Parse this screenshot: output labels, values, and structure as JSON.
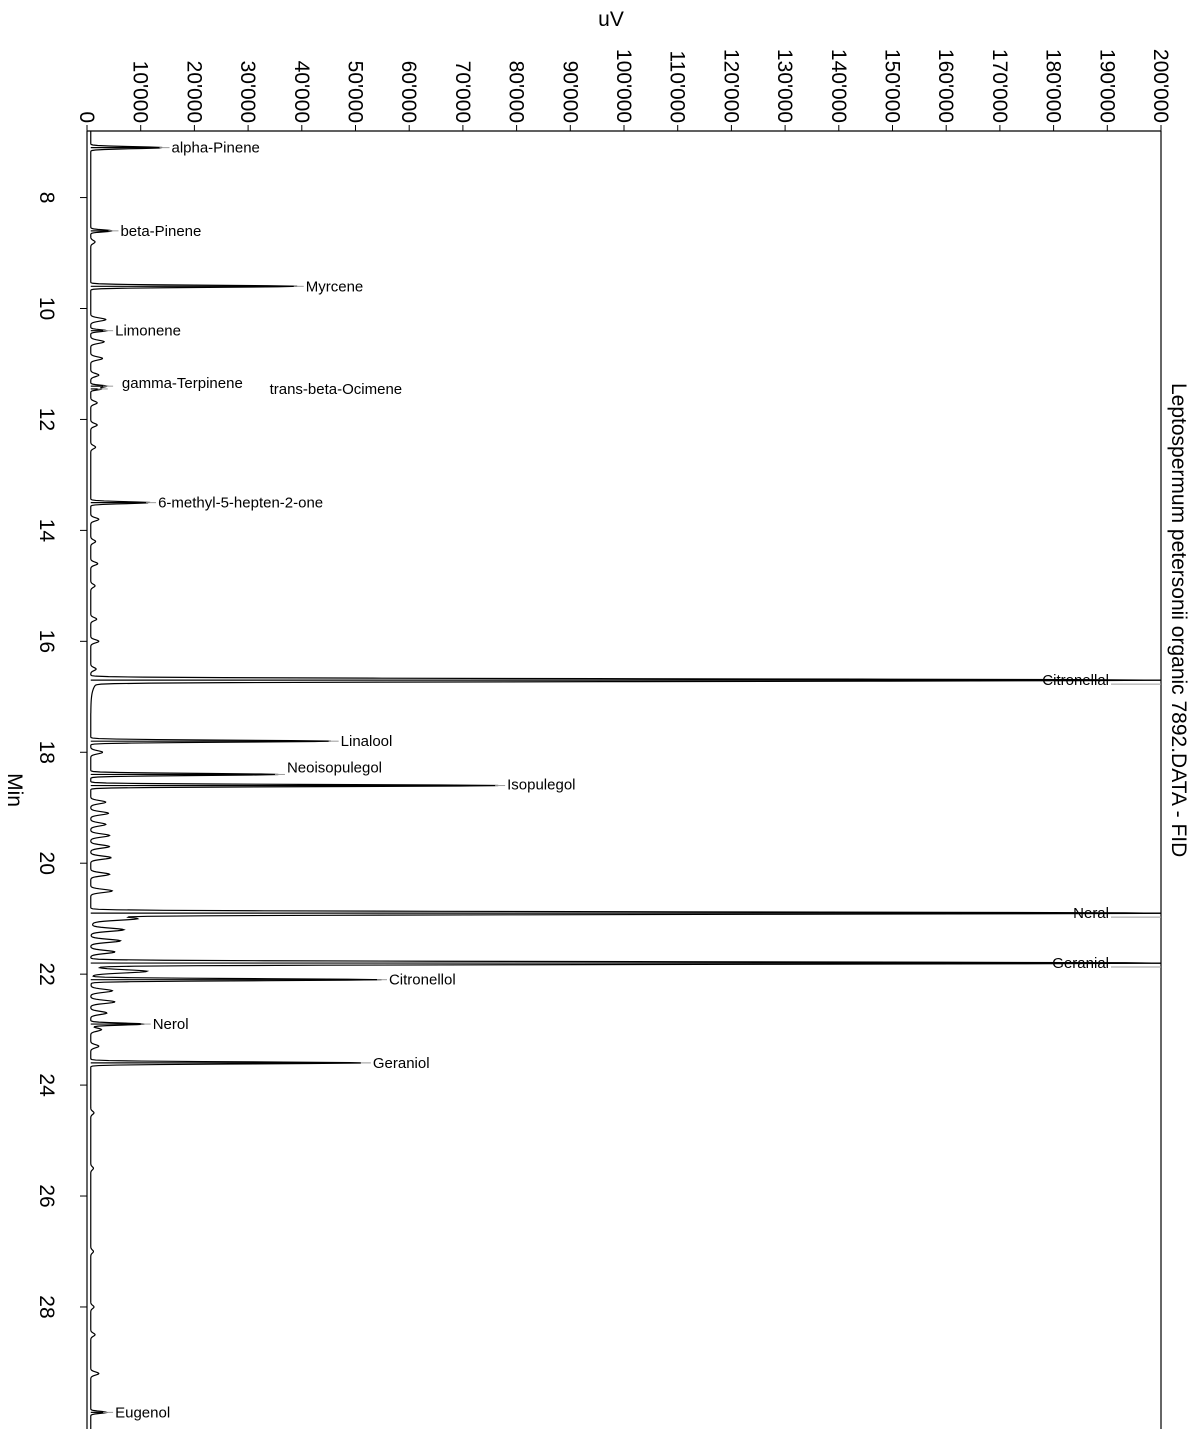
{
  "chart_data": {
    "type": "line",
    "title": "Leptospermum petersonii organic 7892.DATA - FID",
    "xlabel": "Min",
    "ylabel": "uV",
    "xlim": [
      6.8,
      30.2
    ],
    "ylim": [
      0,
      200000
    ],
    "x_ticks": [
      8,
      10,
      12,
      14,
      16,
      18,
      20,
      22,
      24,
      26,
      28
    ],
    "y_ticks": [
      "0",
      "10'000",
      "20'000",
      "30'000",
      "40'000",
      "50'000",
      "60'000",
      "70'000",
      "80'000",
      "90'000",
      "100'000",
      "110'000",
      "120'000",
      "130'000",
      "140'000",
      "150'000",
      "160'000",
      "170'000",
      "180'000",
      "190'000",
      "200'000"
    ],
    "baseline": 700,
    "orientation": "rotated-90",
    "grid": false,
    "peaks": [
      {
        "label": "alpha-Pinene",
        "x": 7.1,
        "y": 13500
      },
      {
        "label": "beta-Pinene",
        "x": 8.6,
        "y": 4000
      },
      {
        "label": "Myrcene",
        "x": 9.6,
        "y": 38500
      },
      {
        "label": "Limonene",
        "x": 10.4,
        "y": 3000
      },
      {
        "label": "gamma-Terpinene",
        "x": 11.4,
        "y": 3000
      },
      {
        "label": "trans-beta-Ocimene",
        "x": 11.45,
        "y": 2000
      },
      {
        "label": "6-methyl-5-hepten-2-one",
        "x": 13.5,
        "y": 11000
      },
      {
        "label": "Citronellal",
        "x": 16.7,
        "y": 200000
      },
      {
        "label": "Linalool",
        "x": 17.8,
        "y": 45000
      },
      {
        "label": "Neoisopulegol",
        "x": 18.4,
        "y": 35000
      },
      {
        "label": "Isopulegol",
        "x": 18.6,
        "y": 76000
      },
      {
        "label": "Neral",
        "x": 20.9,
        "y": 200000
      },
      {
        "label": "Geranial",
        "x": 21.8,
        "y": 200000
      },
      {
        "label": "Citronellol",
        "x": 22.1,
        "y": 54000
      },
      {
        "label": "Nerol",
        "x": 22.9,
        "y": 10000
      },
      {
        "label": "Geraniol",
        "x": 23.6,
        "y": 51000
      },
      {
        "label": "Eugenol",
        "x": 29.9,
        "y": 3000
      }
    ],
    "minor_peaks": [
      {
        "x": 8.8,
        "y": 800
      },
      {
        "x": 10.2,
        "y": 2800
      },
      {
        "x": 10.6,
        "y": 2500
      },
      {
        "x": 10.9,
        "y": 2200
      },
      {
        "x": 11.2,
        "y": 1500
      },
      {
        "x": 11.7,
        "y": 1200
      },
      {
        "x": 12.1,
        "y": 1200
      },
      {
        "x": 12.5,
        "y": 900
      },
      {
        "x": 13.8,
        "y": 1500
      },
      {
        "x": 14.2,
        "y": 900
      },
      {
        "x": 14.6,
        "y": 1300
      },
      {
        "x": 15.0,
        "y": 800
      },
      {
        "x": 15.6,
        "y": 1100
      },
      {
        "x": 16.0,
        "y": 1500
      },
      {
        "x": 16.5,
        "y": 1000
      },
      {
        "x": 18.0,
        "y": 2200
      },
      {
        "x": 18.9,
        "y": 2800
      },
      {
        "x": 19.1,
        "y": 3300
      },
      {
        "x": 19.3,
        "y": 2800
      },
      {
        "x": 19.5,
        "y": 3500
      },
      {
        "x": 19.7,
        "y": 3500
      },
      {
        "x": 19.9,
        "y": 3800
      },
      {
        "x": 20.2,
        "y": 3500
      },
      {
        "x": 20.5,
        "y": 4000
      },
      {
        "x": 21.0,
        "y": 8000
      },
      {
        "x": 21.2,
        "y": 6000
      },
      {
        "x": 21.4,
        "y": 5500
      },
      {
        "x": 21.6,
        "y": 4500
      },
      {
        "x": 21.95,
        "y": 10000
      },
      {
        "x": 22.3,
        "y": 4000
      },
      {
        "x": 22.5,
        "y": 4500
      },
      {
        "x": 22.7,
        "y": 3000
      },
      {
        "x": 23.0,
        "y": 2000
      },
      {
        "x": 23.3,
        "y": 1500
      },
      {
        "x": 24.5,
        "y": 600
      },
      {
        "x": 25.5,
        "y": 500
      },
      {
        "x": 27.0,
        "y": 500
      },
      {
        "x": 28.0,
        "y": 600
      },
      {
        "x": 28.5,
        "y": 800
      },
      {
        "x": 29.2,
        "y": 1500
      }
    ]
  }
}
